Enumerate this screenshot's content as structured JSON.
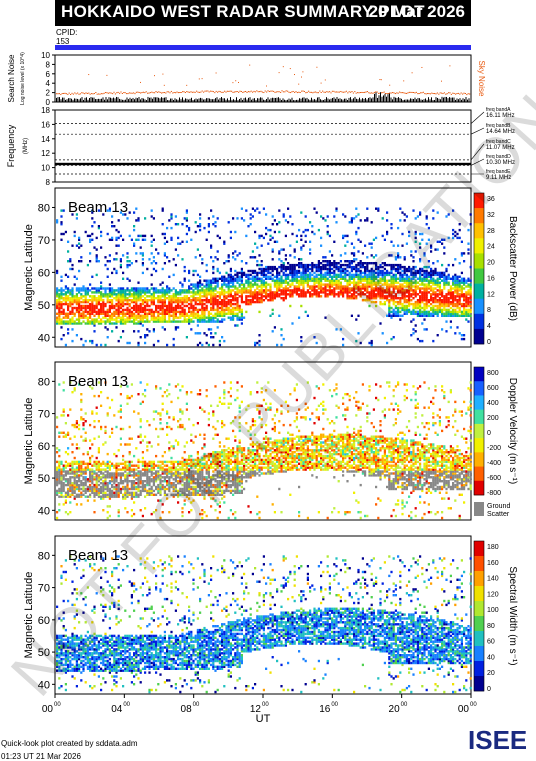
{
  "header": {
    "title": "HOKKAIDO WEST RADAR SUMMARY PLOT",
    "date": "20 Mar 2026"
  },
  "cpid": {
    "label": "CPID:",
    "value": "153"
  },
  "noise_panel": {
    "ylabel": "Search Noise",
    "unit_label": "Log noise level (x 10^4)",
    "yticks": [
      "10",
      "8",
      "6",
      "4",
      "2",
      "0"
    ],
    "ymin": 0,
    "ymax": 10,
    "series_label": "Sky Noise"
  },
  "freq_panel": {
    "ylabel": "Frequency",
    "unit": "(MHz)",
    "yticks": [
      "18",
      "16",
      "14",
      "12",
      "10",
      "8"
    ],
    "ymin": 8,
    "ymax": 18,
    "bands": [
      {
        "name": "freq bandA",
        "value": "16.11 MHz",
        "freq": 16.11
      },
      {
        "name": "freq bandB",
        "value": "14.64 MHz",
        "freq": 14.64
      },
      {
        "name": "freq bandC",
        "value": "11.07 MHz",
        "freq": 11.07
      },
      {
        "name": "freq bandD",
        "value": "10.30 MHz",
        "freq": 10.3
      },
      {
        "name": "freq bandE",
        "value": "9.11 MHz",
        "freq": 9.11
      }
    ],
    "operating_freq": 10.5
  },
  "chart_data": [
    {
      "type": "heatmap",
      "panel": "power",
      "beam_label": "Beam 13",
      "ylabel": "Magnetic Latitude",
      "yticks": [
        "80",
        "70",
        "60",
        "50",
        "40"
      ],
      "ylim": [
        37,
        86
      ],
      "colorbar_label": "Backscatter Power (dB)",
      "colorbar_ticks": [
        "36",
        "32",
        "28",
        "24",
        "20",
        "16",
        "12",
        "8",
        "4",
        "0"
      ],
      "colorbar_colors": [
        "#ff1a00",
        "#ff7a00",
        "#ffc000",
        "#f0f000",
        "#a8e000",
        "#40c840",
        "#00b0a0",
        "#1890ff",
        "#0030e0",
        "#000090"
      ]
    },
    {
      "type": "heatmap",
      "panel": "velocity",
      "beam_label": "Beam 13",
      "ylabel": "Magnetic Latitude",
      "yticks": [
        "80",
        "70",
        "60",
        "50",
        "40"
      ],
      "ylim": [
        37,
        86
      ],
      "colorbar_label": "Doppler Velocity (m s⁻¹)",
      "colorbar_ticks": [
        "800",
        "600",
        "400",
        "200",
        "0",
        "-200",
        "-400",
        "-600",
        "-800"
      ],
      "colorbar_colors": [
        "#0000c0",
        "#1860ff",
        "#20b0ff",
        "#40e0a0",
        "#c0f040",
        "#f0f000",
        "#ffb000",
        "#ff6000",
        "#e00000"
      ],
      "ground_scatter_label": [
        "Ground",
        "Scatter"
      ],
      "ground_scatter_color": "#888888"
    },
    {
      "type": "heatmap",
      "panel": "width",
      "beam_label": "Beam 13",
      "ylabel": "Magnetic Latitude",
      "yticks": [
        "80",
        "70",
        "60",
        "50",
        "40"
      ],
      "ylim": [
        37,
        86
      ],
      "colorbar_label": "Spectral Width (m s⁻¹)",
      "colorbar_ticks": [
        "180",
        "160",
        "140",
        "120",
        "100",
        "80",
        "60",
        "40",
        "20",
        "0"
      ],
      "colorbar_colors": [
        "#e00000",
        "#ff5000",
        "#ffa000",
        "#f0e000",
        "#b0e830",
        "#50d050",
        "#20c0c0",
        "#1880ff",
        "#0020e0",
        "#000090"
      ]
    }
  ],
  "xaxis": {
    "label": "UT",
    "ticks": [
      {
        "hour": "00",
        "min": "00"
      },
      {
        "hour": "04",
        "min": "00"
      },
      {
        "hour": "08",
        "min": "00"
      },
      {
        "hour": "12",
        "min": "00"
      },
      {
        "hour": "16",
        "min": "00"
      },
      {
        "hour": "20",
        "min": "00"
      },
      {
        "hour": "00",
        "min": "00"
      }
    ]
  },
  "credit": {
    "line1": "Quick-look plot created by sddata.adm",
    "line2": "01:23 UT 21 Mar 2026"
  },
  "logo": {
    "text": "ISEE"
  },
  "watermark": {
    "text": "NOT FOR PUBLICATION"
  }
}
